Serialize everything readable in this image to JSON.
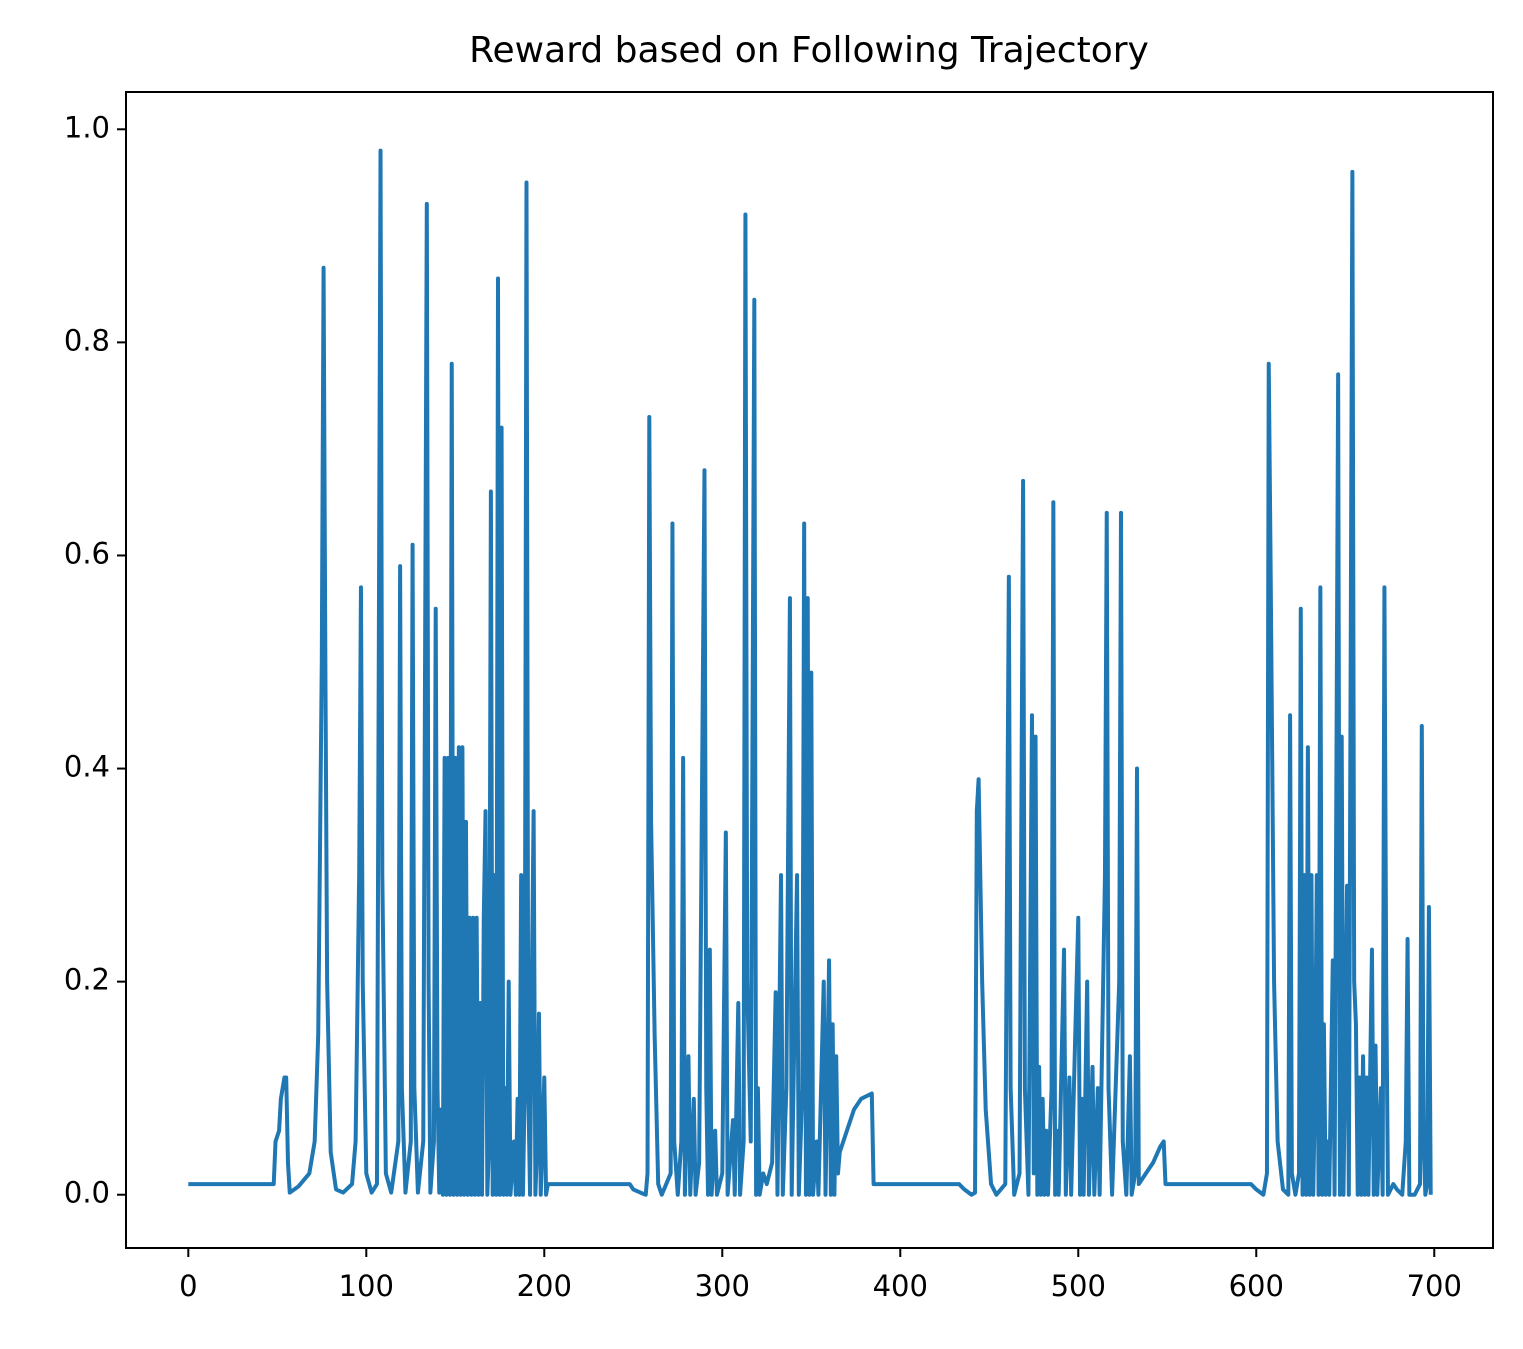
{
  "chart_data": {
    "type": "line",
    "title": "Reward based on Following Trajectory",
    "xlim": [
      -35,
      733
    ],
    "ylim": [
      -0.05,
      1.035
    ],
    "xticks": [
      0,
      100,
      200,
      300,
      400,
      500,
      600,
      700
    ],
    "yticks": [
      {
        "value": 0,
        "label": "0.0"
      },
      {
        "value": 0.2,
        "label": "0.2"
      },
      {
        "value": 0.4,
        "label": "0.4"
      },
      {
        "value": 0.6,
        "label": "0.6"
      },
      {
        "value": 0.8,
        "label": "0.8"
      },
      {
        "value": 1,
        "label": "1.0"
      }
    ],
    "series": [
      {
        "color": "#1f77b4",
        "x": [
          0,
          48,
          49,
          51,
          52,
          54,
          55,
          56,
          57,
          62,
          68,
          71,
          73,
          75,
          76,
          77,
          78,
          80,
          83,
          87,
          92,
          94,
          96,
          97,
          98,
          100,
          103,
          106,
          108,
          109,
          111,
          114,
          118,
          119,
          120,
          122,
          125,
          126,
          127,
          129,
          132,
          134,
          135,
          136,
          138,
          139,
          140,
          141,
          142,
          143,
          144,
          145,
          146,
          147,
          148,
          149,
          150,
          151,
          152,
          153,
          154,
          155,
          156,
          157,
          158,
          159,
          160,
          161,
          162,
          163,
          164,
          165,
          166,
          167,
          168,
          169,
          170,
          171,
          172,
          173,
          174,
          175,
          176,
          177,
          178,
          179,
          180,
          181,
          183,
          184,
          185,
          186,
          187,
          188,
          189,
          190,
          191,
          192,
          193,
          194,
          195,
          196,
          197,
          198,
          199,
          200,
          201,
          202,
          248,
          250,
          254,
          257,
          258,
          259,
          260,
          262,
          264,
          266,
          271,
          272,
          273,
          275,
          277,
          278,
          279,
          281,
          282,
          284,
          285,
          287,
          290,
          291,
          292,
          293,
          294,
          296,
          297,
          300,
          302,
          303,
          306,
          307,
          309,
          310,
          312,
          313,
          314,
          316,
          318,
          319,
          320,
          321,
          323,
          325,
          328,
          330,
          331,
          333,
          334,
          336,
          338,
          339,
          342,
          343,
          345,
          346,
          347,
          348,
          349,
          350,
          351,
          353,
          354,
          357,
          358,
          360,
          361,
          362,
          363,
          364,
          365,
          366,
          370,
          374,
          378,
          384,
          385,
          433,
          436,
          440,
          442,
          443,
          444,
          446,
          448,
          451,
          454,
          459,
          460,
          461,
          462,
          464,
          467,
          469,
          470,
          472,
          474,
          475,
          476,
          477,
          478,
          479,
          480,
          481,
          482,
          483,
          485,
          486,
          487,
          488,
          489,
          492,
          493,
          495,
          496,
          500,
          501,
          502,
          503,
          505,
          506,
          508,
          509,
          511,
          512,
          515,
          516,
          517,
          519,
          523,
          524,
          525,
          527,
          529,
          530,
          532,
          533,
          534,
          538,
          542,
          546,
          548,
          549,
          597,
          600,
          604,
          606,
          607,
          608,
          610,
          612,
          615,
          618,
          619,
          620,
          622,
          624,
          625,
          626,
          627,
          628,
          629,
          630,
          631,
          632,
          633,
          634,
          635,
          636,
          637,
          638,
          639,
          640,
          641,
          643,
          644,
          646,
          647,
          648,
          649,
          651,
          652,
          654,
          655,
          656,
          657,
          658,
          659,
          660,
          661,
          662,
          663,
          665,
          666,
          667,
          668,
          670,
          671,
          672,
          673,
          674,
          677,
          679,
          682,
          684,
          685,
          686,
          689,
          692,
          693,
          694,
          695,
          696,
          697,
          698
        ],
        "values": [
          0.01,
          0.01,
          0.05,
          0.06,
          0.09,
          0.11,
          0.11,
          0.03,
          0.002,
          0.008,
          0.02,
          0.05,
          0.15,
          0.5,
          0.87,
          0.5,
          0.2,
          0.04,
          0.005,
          0.002,
          0.01,
          0.05,
          0.3,
          0.57,
          0.2,
          0.02,
          0.002,
          0.01,
          0.98,
          0.3,
          0.02,
          0.002,
          0.05,
          0.59,
          0.1,
          0.002,
          0.05,
          0.61,
          0.1,
          0.002,
          0.05,
          0.93,
          0.2,
          0.002,
          0.05,
          0.55,
          0.1,
          0.002,
          0.08,
          0,
          0.41,
          0,
          0.41,
          0,
          0.78,
          0,
          0.41,
          0,
          0.42,
          0,
          0.42,
          0,
          0.35,
          0,
          0.26,
          0,
          0.26,
          0,
          0.26,
          0,
          0.18,
          0,
          0.26,
          0.36,
          0,
          0.05,
          0.66,
          0,
          0.3,
          0,
          0.86,
          0,
          0.72,
          0,
          0.1,
          0,
          0.2,
          0,
          0.05,
          0,
          0.09,
          0,
          0.3,
          0,
          0.1,
          0.95,
          0.1,
          0,
          0.2,
          0.36,
          0,
          0.05,
          0.17,
          0,
          0.05,
          0.11,
          0,
          0.01,
          0.01,
          0.005,
          0.002,
          0,
          0.02,
          0.73,
          0.35,
          0.15,
          0.01,
          0,
          0.02,
          0.63,
          0.05,
          0,
          0.05,
          0.41,
          0,
          0.13,
          0,
          0.09,
          0,
          0.03,
          0.68,
          0.1,
          0,
          0.23,
          0,
          0.06,
          0,
          0.02,
          0.34,
          0,
          0.07,
          0,
          0.18,
          0,
          0.05,
          0.92,
          0.2,
          0.05,
          0.84,
          0,
          0.1,
          0,
          0.02,
          0.01,
          0.03,
          0.19,
          0,
          0.3,
          0,
          0.1,
          0.56,
          0,
          0.3,
          0,
          0.1,
          0.63,
          0,
          0.56,
          0,
          0.49,
          0,
          0.05,
          0,
          0.2,
          0,
          0.22,
          0,
          0.16,
          0,
          0.13,
          0.02,
          0.04,
          0.06,
          0.08,
          0.09,
          0.095,
          0.01,
          0.01,
          0.005,
          0,
          0.002,
          0.36,
          0.39,
          0.2,
          0.08,
          0.01,
          0,
          0.01,
          0.3,
          0.58,
          0.1,
          0,
          0.02,
          0.67,
          0.1,
          0,
          0.45,
          0.02,
          0.43,
          0,
          0.12,
          0,
          0.09,
          0,
          0.06,
          0,
          0.1,
          0.65,
          0,
          0.06,
          0,
          0.23,
          0,
          0.11,
          0,
          0.26,
          0,
          0.09,
          0,
          0.2,
          0,
          0.12,
          0,
          0.1,
          0,
          0.3,
          0.64,
          0.1,
          0,
          0.2,
          0.64,
          0.05,
          0,
          0.13,
          0,
          0.02,
          0.4,
          0.01,
          0.02,
          0.03,
          0.045,
          0.05,
          0.01,
          0.01,
          0.005,
          0,
          0.02,
          0.78,
          0.6,
          0.2,
          0.05,
          0.005,
          0,
          0.45,
          0.02,
          0,
          0.02,
          0.55,
          0,
          0.3,
          0,
          0.42,
          0,
          0.3,
          0,
          0.1,
          0.3,
          0,
          0.57,
          0,
          0.16,
          0,
          0.05,
          0,
          0.22,
          0,
          0.77,
          0,
          0.43,
          0,
          0.29,
          0,
          0.96,
          0.2,
          0.16,
          0,
          0.11,
          0,
          0.13,
          0,
          0.11,
          0,
          0.23,
          0,
          0.14,
          0,
          0.1,
          0,
          0.57,
          0.2,
          0,
          0.01,
          0.005,
          0,
          0.05,
          0.24,
          0,
          0,
          0.01,
          0.44,
          0.05,
          0,
          0.01,
          0.27,
          0
        ]
      }
    ]
  }
}
